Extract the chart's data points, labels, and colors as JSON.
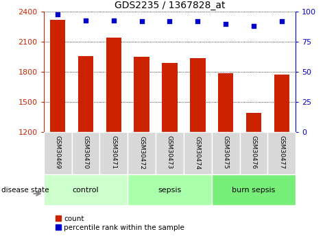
{
  "title": "GDS2235 / 1367828_at",
  "samples": [
    "GSM30469",
    "GSM30470",
    "GSM30471",
    "GSM30472",
    "GSM30473",
    "GSM30474",
    "GSM30475",
    "GSM30476",
    "GSM30477"
  ],
  "bar_values": [
    2320,
    1960,
    2140,
    1950,
    1890,
    1940,
    1785,
    1390,
    1775
  ],
  "percentile_values": [
    98,
    93,
    93,
    92,
    92,
    92,
    90,
    88,
    92
  ],
  "ylim_left": [
    1200,
    2400
  ],
  "ylim_right": [
    0,
    100
  ],
  "yticks_left": [
    1200,
    1500,
    1800,
    2100,
    2400
  ],
  "yticks_right": [
    0,
    25,
    50,
    75,
    100
  ],
  "bar_color": "#cc2200",
  "dot_color": "#0000cc",
  "left_axis_color": "#cc2200",
  "right_axis_color": "#0000cc",
  "groups": [
    {
      "label": "control",
      "span": [
        0,
        3
      ],
      "color": "#ccffcc"
    },
    {
      "label": "sepsis",
      "span": [
        3,
        6
      ],
      "color": "#aaffaa"
    },
    {
      "label": "burn sepsis",
      "span": [
        6,
        9
      ],
      "color": "#77ee77"
    }
  ],
  "disease_state_label": "disease state",
  "legend": [
    {
      "label": "count",
      "color": "#cc2200"
    },
    {
      "label": "percentile rank within the sample",
      "color": "#0000cc"
    }
  ],
  "bg_color": "#ffffff",
  "tick_label_bg": "#d8d8d8"
}
